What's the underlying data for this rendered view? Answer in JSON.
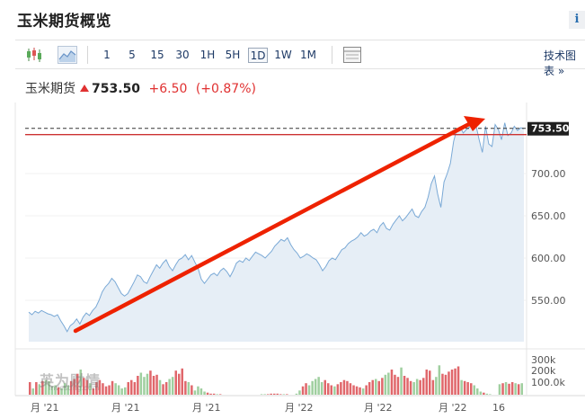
{
  "header": {
    "title": "玉米期货概览",
    "info_label": "i"
  },
  "toolbar": {
    "timeframes": [
      "1",
      "5",
      "15",
      "30",
      "1H",
      "5H",
      "1D",
      "1W",
      "1M"
    ],
    "active_timeframe": "1D",
    "tech_chart_label": "技术图表 »",
    "icons": [
      "candlestick-icon",
      "area-chart-icon",
      "grid-layout-icon"
    ]
  },
  "quote": {
    "name": "玉米期货",
    "price": "753.50",
    "change": "+6.50",
    "change_pct": "(+0.87%)",
    "direction": "up"
  },
  "chart": {
    "last_price_label": "753.50",
    "y_labels": [
      "700.00",
      "650.00",
      "600.00",
      "550.00"
    ],
    "volume_labels": [
      "300k",
      "200k",
      "100.0k"
    ],
    "x_labels": [
      "月 '21",
      "月 '21",
      "月 '21",
      "月 '22",
      "月 '22",
      "月 '22",
      "16"
    ],
    "colors": {
      "line": "#7aa9d6",
      "area": "#e6eef6",
      "up": "#e0676b",
      "down": "#9fcf9f",
      "arrow": "#ee2200",
      "last_line": "#cc3333"
    }
  },
  "chart_data": {
    "type": "line",
    "price_axis": [
      550,
      600,
      650,
      700,
      753.5
    ],
    "last_price": 753.5,
    "previous_close_reference": 747.0,
    "price_series": [
      536,
      533,
      537,
      535,
      538,
      536,
      534,
      533,
      531,
      533,
      526,
      520,
      513,
      520,
      523,
      528,
      522,
      530,
      535,
      532,
      538,
      542,
      550,
      560,
      566,
      570,
      576,
      572,
      565,
      558,
      555,
      558,
      565,
      572,
      580,
      578,
      572,
      570,
      578,
      585,
      592,
      588,
      594,
      598,
      590,
      585,
      592,
      598,
      600,
      604,
      598,
      603,
      595,
      588,
      575,
      570,
      575,
      580,
      582,
      579,
      585,
      588,
      584,
      578,
      585,
      594,
      597,
      595,
      600,
      597,
      602,
      607,
      605,
      603,
      600,
      604,
      608,
      614,
      618,
      622,
      620,
      624,
      616,
      610,
      606,
      600,
      602,
      605,
      603,
      600,
      598,
      592,
      585,
      590,
      597,
      600,
      598,
      604,
      610,
      612,
      617,
      620,
      622,
      625,
      630,
      626,
      628,
      632,
      634,
      630,
      638,
      642,
      635,
      633,
      640,
      645,
      650,
      644,
      648,
      653,
      658,
      650,
      648,
      655,
      660,
      672,
      688,
      697,
      676,
      660,
      690,
      700,
      712,
      738,
      752,
      755,
      748,
      752,
      755,
      760,
      757,
      740,
      725,
      756,
      735,
      732,
      758,
      752,
      740,
      760,
      745,
      748,
      756,
      751,
      754,
      753.5
    ],
    "volume_series": [
      120,
      60,
      120,
      100,
      130,
      140,
      130,
      80,
      90,
      70,
      60,
      110,
      90,
      130,
      150,
      200,
      240,
      160,
      140,
      110,
      60,
      120,
      140,
      110,
      80,
      90,
      130,
      110,
      90,
      60,
      70,
      120,
      140,
      120,
      180,
      210,
      170,
      200,
      230,
      180,
      190,
      140,
      100,
      120,
      150,
      170,
      230,
      200,
      250,
      130,
      120,
      90,
      40,
      80,
      60,
      30,
      20,
      10,
      10,
      5,
      5,
      0,
      0,
      0,
      0,
      0,
      0,
      0,
      0,
      0,
      0,
      0,
      0,
      5,
      5,
      5,
      10,
      10,
      10,
      5,
      5,
      5,
      0,
      0,
      10,
      40,
      80,
      110,
      90,
      130,
      150,
      170,
      120,
      140,
      110,
      90,
      80,
      100,
      120,
      140,
      130,
      110,
      90,
      80,
      70,
      60,
      90,
      120,
      140,
      150,
      130,
      160,
      190,
      210,
      240,
      190,
      170,
      260,
      180,
      160,
      130,
      120,
      150,
      140,
      160,
      240,
      230,
      140,
      170,
      280,
      200,
      190,
      220,
      240,
      250,
      270,
      140,
      130,
      120,
      110,
      90,
      60,
      30,
      20,
      10,
      5,
      0,
      0,
      100,
      110,
      120,
      105,
      120,
      110,
      100,
      110
    ]
  }
}
